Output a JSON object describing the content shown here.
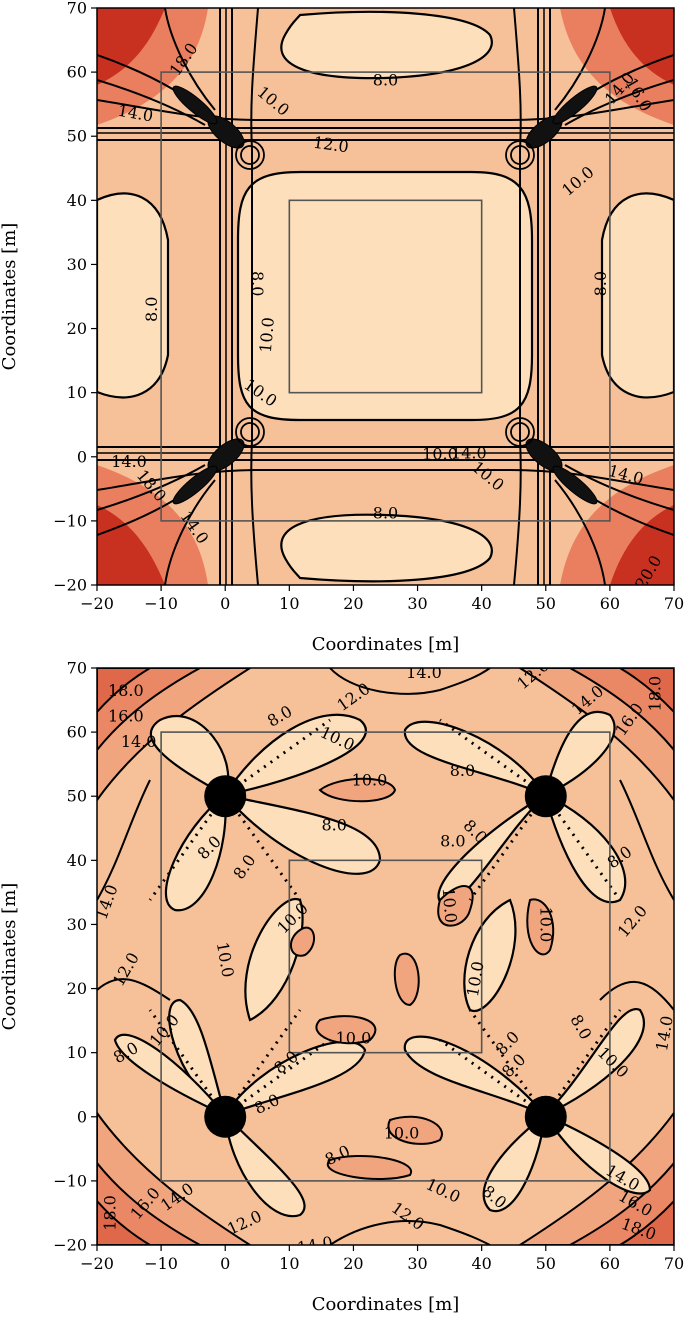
{
  "figure": {
    "panel_count": 2
  },
  "colors": {
    "level_palette": [
      "#fde0bb",
      "#f8c7a0",
      "#f2a57f",
      "#e8795c",
      "#d95138",
      "#c22d1f",
      "#a50f15"
    ],
    "contour_line": "#000000",
    "frame_line": "#555555",
    "source": "#000000"
  },
  "chart_data": [
    {
      "type": "contour",
      "panel": "top",
      "xlabel": "Coordinates [m]",
      "ylabel": "Coordinates [m]",
      "xlim": [
        -20,
        70
      ],
      "ylim": [
        -20,
        70
      ],
      "xticks": [
        -20,
        -10,
        0,
        10,
        20,
        30,
        40,
        50,
        60,
        70
      ],
      "yticks": [
        -20,
        -10,
        0,
        10,
        20,
        30,
        40,
        50,
        60,
        70
      ],
      "levels": [
        8.0,
        10.0,
        12.0,
        14.0,
        16.0,
        18.0,
        20.0
      ],
      "sources": [],
      "frames": [
        {
          "x": [
            -10,
            60
          ],
          "y": [
            -10,
            60
          ]
        },
        {
          "x": [
            10,
            40
          ],
          "y": [
            10,
            40
          ]
        }
      ],
      "contour_labels": [
        {
          "text": "8.0",
          "x": 25,
          "y": 58.8
        },
        {
          "text": "8.0",
          "x": 25,
          "y": -8.8
        },
        {
          "text": "8.0",
          "x": 5,
          "y": 27,
          "rotate": 90
        },
        {
          "text": "8.0",
          "x": -11.5,
          "y": 23,
          "rotate": -90
        },
        {
          "text": "8.0",
          "x": 58.5,
          "y": 27,
          "rotate": -90
        },
        {
          "text": "10.0",
          "x": 7.5,
          "y": 55.5,
          "rotate": 40
        },
        {
          "text": "10.0",
          "x": 6.5,
          "y": 19,
          "rotate": -85
        },
        {
          "text": "10.0",
          "x": 5.5,
          "y": 10,
          "rotate": 35
        },
        {
          "text": "10.0",
          "x": 55,
          "y": 43,
          "rotate": -40
        },
        {
          "text": "10.0",
          "x": 41,
          "y": -3,
          "rotate": 40
        },
        {
          "text": "10.0",
          "x": 33.5,
          "y": 0.4
        },
        {
          "text": "12.0",
          "x": 16.5,
          "y": 48.7,
          "rotate": 8
        },
        {
          "text": "14.0",
          "x": -14,
          "y": 53.6,
          "rotate": 10
        },
        {
          "text": "14.0",
          "x": 38,
          "y": 0.6
        },
        {
          "text": "14.0",
          "x": 61.5,
          "y": 57.5,
          "rotate": -50
        },
        {
          "text": "14.0",
          "x": 62.5,
          "y": -2.8,
          "rotate": 15
        },
        {
          "text": "14.0",
          "x": -15,
          "y": -0.7
        },
        {
          "text": "14.0",
          "x": -4.8,
          "y": -11,
          "rotate": 55
        },
        {
          "text": "18.0",
          "x": -6.5,
          "y": 62,
          "rotate": -55
        },
        {
          "text": "18.0",
          "x": -11.5,
          "y": -4.5,
          "rotate": 50
        },
        {
          "text": "20.0",
          "x": 66,
          "y": -18,
          "rotate": -60
        },
        {
          "text": "16.0",
          "x": 64.5,
          "y": 56.5,
          "rotate": 60
        }
      ]
    },
    {
      "type": "contour",
      "panel": "bottom",
      "xlabel": "Coordinates [m]",
      "ylabel": "Coordinates [m]",
      "xlim": [
        -20,
        70
      ],
      "ylim": [
        -20,
        70
      ],
      "xticks": [
        -20,
        -10,
        0,
        10,
        20,
        30,
        40,
        50,
        60,
        70
      ],
      "yticks": [
        -20,
        -10,
        0,
        10,
        20,
        30,
        40,
        50,
        60,
        70
      ],
      "levels": [
        8.0,
        10.0,
        12.0,
        14.0,
        16.0,
        18.0
      ],
      "sources": [
        {
          "x": 0,
          "y": 50
        },
        {
          "x": 50,
          "y": 50
        },
        {
          "x": 0,
          "y": 0
        },
        {
          "x": 50,
          "y": 0
        }
      ],
      "frames": [
        {
          "x": [
            -10,
            60
          ],
          "y": [
            -10,
            60
          ]
        },
        {
          "x": [
            10,
            40
          ],
          "y": [
            10,
            40
          ]
        }
      ],
      "contour_labels": [
        {
          "text": "18.0",
          "x": -15.5,
          "y": 66.5
        },
        {
          "text": "16.0",
          "x": -15.5,
          "y": 62.5
        },
        {
          "text": "14.0",
          "x": -13.5,
          "y": 58.5
        },
        {
          "text": "8.0",
          "x": 8.5,
          "y": 62.5,
          "rotate": -30
        },
        {
          "text": "12.0",
          "x": 20,
          "y": 65.5,
          "rotate": -35
        },
        {
          "text": "14.0",
          "x": 31,
          "y": 69.3
        },
        {
          "text": "10.0",
          "x": 17.5,
          "y": 59,
          "rotate": 25
        },
        {
          "text": "10.0",
          "x": 22.5,
          "y": 52.5
        },
        {
          "text": "8.0",
          "x": 37,
          "y": 54
        },
        {
          "text": "8.0",
          "x": 17,
          "y": 45.5
        },
        {
          "text": "8.0",
          "x": -2.5,
          "y": 42,
          "rotate": -45
        },
        {
          "text": "8.0",
          "x": 3,
          "y": 39,
          "rotate": -55
        },
        {
          "text": "8.0",
          "x": 35.5,
          "y": 43
        },
        {
          "text": "8.0",
          "x": 39,
          "y": 44.5,
          "rotate": 45
        },
        {
          "text": "12.0",
          "x": 48,
          "y": 69,
          "rotate": -40
        },
        {
          "text": "14.0",
          "x": 56.5,
          "y": 65,
          "rotate": -40
        },
        {
          "text": "16.0",
          "x": 63,
          "y": 62,
          "rotate": -55
        },
        {
          "text": "18.0",
          "x": 67,
          "y": 66,
          "rotate": -90
        },
        {
          "text": "8.0",
          "x": 61.5,
          "y": 40.5,
          "rotate": -35
        },
        {
          "text": "10.0",
          "x": 10.5,
          "y": 31,
          "rotate": -45
        },
        {
          "text": "10.0",
          "x": 35,
          "y": 33,
          "rotate": 85
        },
        {
          "text": "10.0",
          "x": 50,
          "y": 30,
          "rotate": 90
        },
        {
          "text": "12.0",
          "x": 63.5,
          "y": 30.5,
          "rotate": -50
        },
        {
          "text": "14.0",
          "x": -18.5,
          "y": 33.5,
          "rotate": -70
        },
        {
          "text": "12.0",
          "x": -15.5,
          "y": 23,
          "rotate": -60
        },
        {
          "text": "10.0",
          "x": 0,
          "y": 24.5,
          "rotate": 80
        },
        {
          "text": "10.0",
          "x": 39,
          "y": 21.5,
          "rotate": -80
        },
        {
          "text": "10.0",
          "x": -9.5,
          "y": 13.5,
          "rotate": -50
        },
        {
          "text": "8.0",
          "x": -15.5,
          "y": 10,
          "rotate": -30
        },
        {
          "text": "10.0",
          "x": 20,
          "y": 12.3
        },
        {
          "text": "8.0",
          "x": 9.5,
          "y": 8.5,
          "rotate": -40
        },
        {
          "text": "8.0",
          "x": 6.5,
          "y": 2,
          "rotate": -25
        },
        {
          "text": "8.0",
          "x": 44,
          "y": 11.5,
          "rotate": -45
        },
        {
          "text": "8.0",
          "x": 45,
          "y": 8,
          "rotate": -45
        },
        {
          "text": "8.0",
          "x": 55.5,
          "y": 14,
          "rotate": 60
        },
        {
          "text": "10.0",
          "x": 60.5,
          "y": 8.5,
          "rotate": 45
        },
        {
          "text": "14.0",
          "x": 68.5,
          "y": 13,
          "rotate": -80
        },
        {
          "text": "10.0",
          "x": 27.5,
          "y": -2.5
        },
        {
          "text": "8.0",
          "x": 17.5,
          "y": -6,
          "rotate": -25
        },
        {
          "text": "10.0",
          "x": 34,
          "y": -11.5,
          "rotate": 25
        },
        {
          "text": "8.0",
          "x": 42,
          "y": -12.5,
          "rotate": 40
        },
        {
          "text": "12.0",
          "x": 28.5,
          "y": -15.5,
          "rotate": 35
        },
        {
          "text": "14.0",
          "x": 14,
          "y": -20,
          "rotate": -10
        },
        {
          "text": "12.0",
          "x": 3,
          "y": -16.5,
          "rotate": -25
        },
        {
          "text": "14.0",
          "x": -7.5,
          "y": -12.5,
          "rotate": -35
        },
        {
          "text": "16.0",
          "x": -12.5,
          "y": -13.5,
          "rotate": -50
        },
        {
          "text": "18.0",
          "x": -18,
          "y": -15,
          "rotate": -90
        },
        {
          "text": "14.0",
          "x": 62,
          "y": -9.5,
          "rotate": 30
        },
        {
          "text": "16.0",
          "x": 64,
          "y": -13.5,
          "rotate": 30
        },
        {
          "text": "18.0",
          "x": 64.5,
          "y": -17.5,
          "rotate": 20
        }
      ]
    }
  ]
}
